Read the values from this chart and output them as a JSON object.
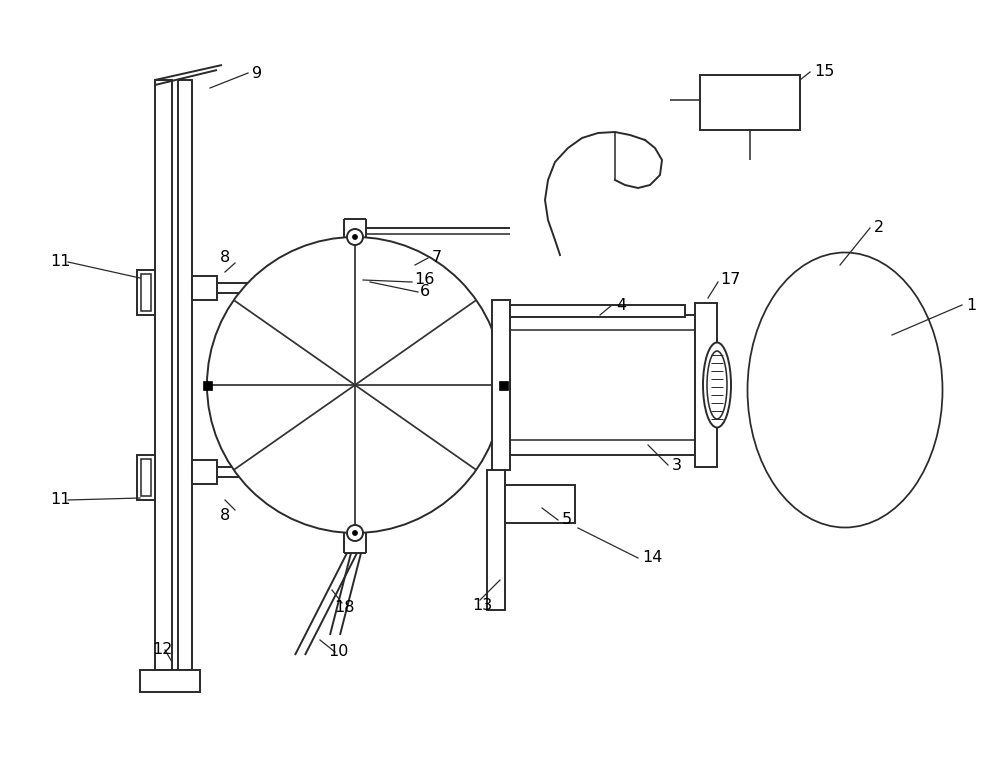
{
  "bg_color": "#ffffff",
  "line_color": "#2a2a2a",
  "line_width": 1.4,
  "figsize": [
    10.0,
    7.67
  ],
  "dpi": 100,
  "label_fontsize": 11.5
}
